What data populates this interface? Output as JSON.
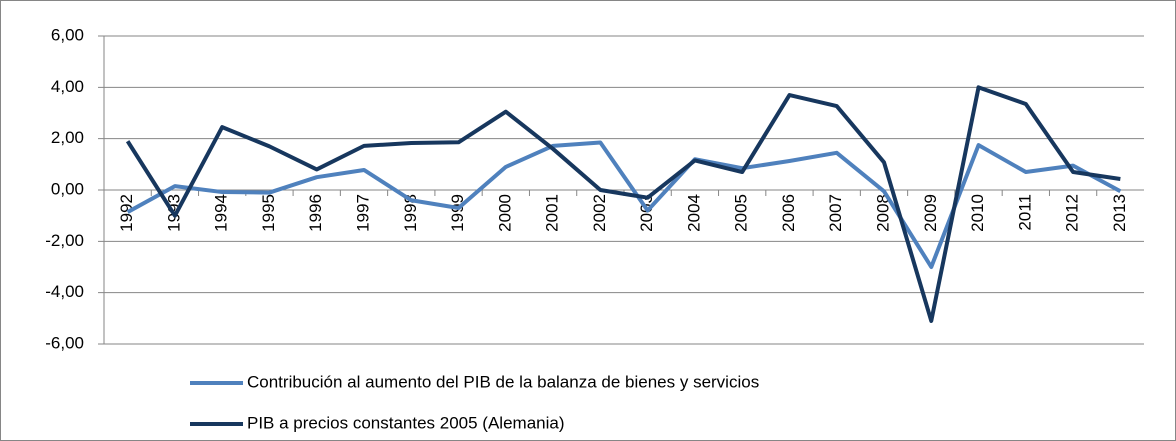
{
  "chart_data": {
    "type": "line",
    "categories": [
      "1992",
      "1993",
      "1994",
      "1995",
      "1996",
      "1997",
      "1998",
      "1999",
      "2000",
      "2001",
      "2002",
      "2003",
      "2004",
      "2005",
      "2006",
      "2007",
      "2008",
      "2009",
      "2010",
      "2011",
      "2012",
      "2013"
    ],
    "series": [
      {
        "name": "Contribución al aumento del PIB de la balanza de bienes y servicios",
        "color": "#4f81bd",
        "values": [
          -0.86,
          0.15,
          -0.08,
          -0.1,
          0.5,
          0.78,
          -0.4,
          -0.7,
          0.9,
          1.72,
          1.85,
          -0.8,
          1.2,
          0.85,
          1.13,
          1.45,
          -0.05,
          -3.0,
          1.75,
          0.7,
          0.95,
          -0.05
        ]
      },
      {
        "name": "PIB a precios constantes 2005 (Alemania)",
        "color": "#17375e",
        "values": [
          1.9,
          -1.0,
          2.45,
          1.7,
          0.8,
          1.72,
          1.83,
          1.86,
          3.05,
          1.6,
          0.0,
          -0.3,
          1.15,
          0.7,
          3.7,
          3.27,
          1.08,
          -5.1,
          4.0,
          3.35,
          0.7,
          0.43
        ]
      }
    ],
    "ylim": [
      -6,
      6
    ],
    "yticks": [
      {
        "value": -6,
        "label": "-6,00"
      },
      {
        "value": -4,
        "label": "-4,00"
      },
      {
        "value": -2,
        "label": "-2,00"
      },
      {
        "value": 0,
        "label": "0,00"
      },
      {
        "value": 2,
        "label": "2,00"
      },
      {
        "value": 4,
        "label": "4,00"
      },
      {
        "value": 6,
        "label": "6,00"
      }
    ],
    "grid": true
  }
}
